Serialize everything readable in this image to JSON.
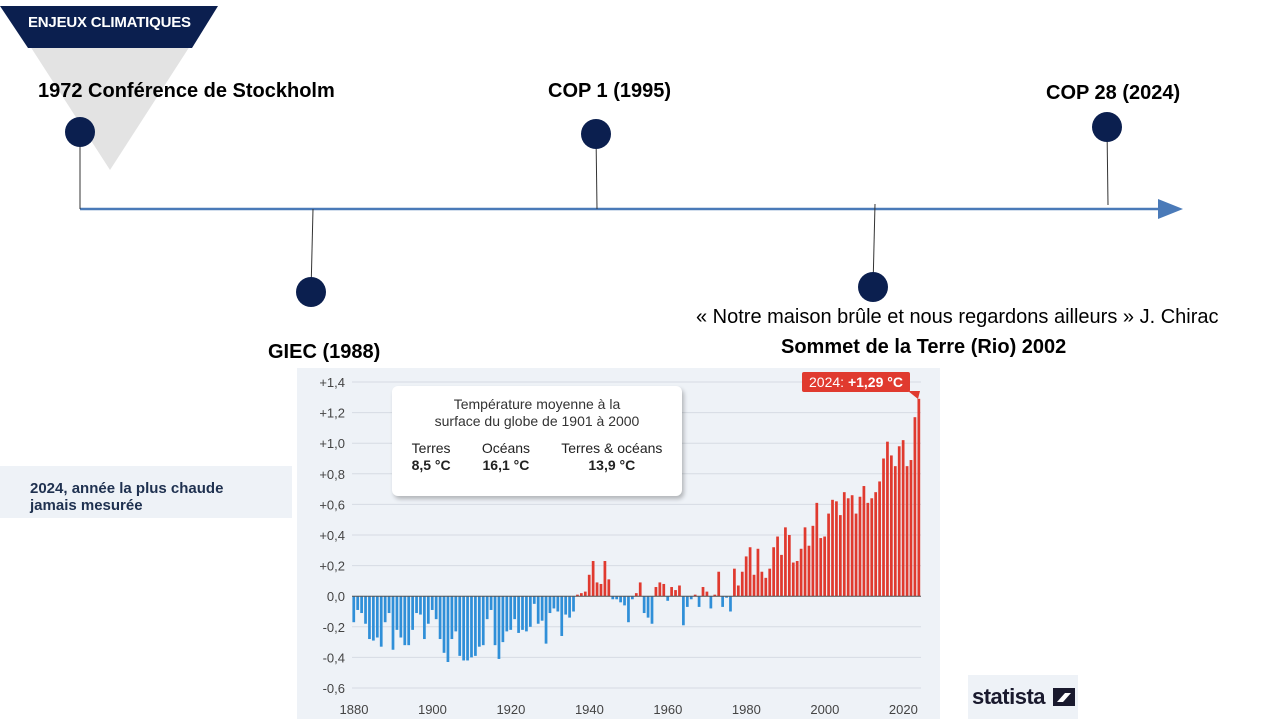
{
  "banner": {
    "label": "ENJEUX CLIMATIQUES"
  },
  "timeline": {
    "events": [
      {
        "label": "1972 Conférence de Stockholm"
      },
      {
        "label": "GIEC (1988)"
      },
      {
        "label": "COP 1 (1995)"
      },
      {
        "label": "Sommet de la Terre (Rio) 2002"
      },
      {
        "label": "COP 28 (2024)"
      }
    ],
    "quote": "« Notre maison brûle et nous regardons ailleurs » J. Chirac"
  },
  "side_note": {
    "line1": "2024, année la plus chaude",
    "line2": "jamais mesurée"
  },
  "statista": {
    "label": "statista"
  },
  "colors": {
    "navy": "#0b1f4f",
    "line_blue": "#4a7ab8",
    "bar_red": "#e03a2f",
    "bar_blue": "#2f8fd8",
    "callout_red": "#e03a2f"
  },
  "chart_data": {
    "type": "bar",
    "x": [
      1880,
      1881,
      1882,
      1883,
      1884,
      1885,
      1886,
      1887,
      1888,
      1889,
      1890,
      1891,
      1892,
      1893,
      1894,
      1895,
      1896,
      1897,
      1898,
      1899,
      1900,
      1901,
      1902,
      1903,
      1904,
      1905,
      1906,
      1907,
      1908,
      1909,
      1910,
      1911,
      1912,
      1913,
      1914,
      1915,
      1916,
      1917,
      1918,
      1919,
      1920,
      1921,
      1922,
      1923,
      1924,
      1925,
      1926,
      1927,
      1928,
      1929,
      1930,
      1931,
      1932,
      1933,
      1934,
      1935,
      1936,
      1937,
      1938,
      1939,
      1940,
      1941,
      1942,
      1943,
      1944,
      1945,
      1946,
      1947,
      1948,
      1949,
      1950,
      1951,
      1952,
      1953,
      1954,
      1955,
      1956,
      1957,
      1958,
      1959,
      1960,
      1961,
      1962,
      1963,
      1964,
      1965,
      1966,
      1967,
      1968,
      1969,
      1970,
      1971,
      1972,
      1973,
      1974,
      1975,
      1976,
      1977,
      1978,
      1979,
      1980,
      1981,
      1982,
      1983,
      1984,
      1985,
      1986,
      1987,
      1988,
      1989,
      1990,
      1991,
      1992,
      1993,
      1994,
      1995,
      1996,
      1997,
      1998,
      1999,
      2000,
      2001,
      2002,
      2003,
      2004,
      2005,
      2006,
      2007,
      2008,
      2009,
      2010,
      2011,
      2012,
      2013,
      2014,
      2015,
      2016,
      2017,
      2018,
      2019,
      2020,
      2021,
      2022,
      2023,
      2024
    ],
    "values": [
      -0.17,
      -0.09,
      -0.11,
      -0.18,
      -0.28,
      -0.29,
      -0.27,
      -0.33,
      -0.17,
      -0.11,
      -0.35,
      -0.22,
      -0.27,
      -0.32,
      -0.32,
      -0.22,
      -0.11,
      -0.12,
      -0.28,
      -0.18,
      -0.09,
      -0.15,
      -0.28,
      -0.37,
      -0.43,
      -0.28,
      -0.23,
      -0.39,
      -0.42,
      -0.42,
      -0.4,
      -0.39,
      -0.33,
      -0.32,
      -0.15,
      -0.09,
      -0.32,
      -0.41,
      -0.3,
      -0.23,
      -0.22,
      -0.15,
      -0.24,
      -0.22,
      -0.23,
      -0.2,
      -0.05,
      -0.18,
      -0.16,
      -0.31,
      -0.11,
      -0.08,
      -0.1,
      -0.26,
      -0.12,
      -0.14,
      -0.1,
      0.01,
      0.02,
      0.03,
      0.14,
      0.23,
      0.09,
      0.08,
      0.23,
      0.11,
      -0.02,
      -0.02,
      -0.04,
      -0.06,
      -0.17,
      -0.02,
      0.02,
      0.09,
      -0.11,
      -0.14,
      -0.18,
      0.06,
      0.09,
      0.08,
      -0.03,
      0.06,
      0.04,
      0.07,
      -0.19,
      -0.07,
      -0.02,
      0.01,
      -0.07,
      0.06,
      0.03,
      -0.08,
      0.01,
      0.16,
      -0.07,
      -0.01,
      -0.1,
      0.18,
      0.07,
      0.16,
      0.26,
      0.32,
      0.14,
      0.31,
      0.16,
      0.12,
      0.18,
      0.32,
      0.39,
      0.27,
      0.45,
      0.4,
      0.22,
      0.23,
      0.31,
      0.45,
      0.33,
      0.46,
      0.61,
      0.38,
      0.39,
      0.54,
      0.63,
      0.62,
      0.53,
      0.68,
      0.64,
      0.66,
      0.54,
      0.65,
      0.72,
      0.61,
      0.64,
      0.68,
      0.75,
      0.9,
      1.01,
      0.92,
      0.85,
      0.98,
      1.02,
      0.85,
      0.89,
      1.17,
      1.29
    ],
    "ylim": [
      -0.6,
      1.4
    ],
    "yticks": [
      "+1,4",
      "+1,2",
      "+1,0",
      "+0,8",
      "+0,6",
      "+0,4",
      "+0,2",
      "0,0",
      "-0,2",
      "-0,4",
      "-0,6"
    ],
    "xticks": [
      "1880",
      "1900",
      "1920",
      "1940",
      "1960",
      "1980",
      "2000",
      "2020"
    ],
    "callout": {
      "prefix": "2024: ",
      "value": "+1,29 °C"
    },
    "info_box": {
      "title_line1": "Température moyenne à la",
      "title_line2": "surface du globe de 1901 à 2000",
      "columns": [
        {
          "label": "Terres",
          "value": "8,5 °C"
        },
        {
          "label": "Océans",
          "value": "16,1 °C"
        },
        {
          "label": "Terres & océans",
          "value": "13,9 °C"
        }
      ]
    }
  }
}
